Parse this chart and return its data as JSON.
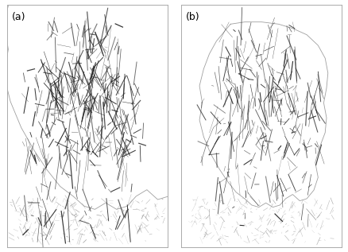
{
  "figsize": [
    4.39,
    3.17
  ],
  "dpi": 100,
  "background_color": "#ffffff",
  "border_color": "#aaaaaa",
  "label_a": "(a)",
  "label_b": "(b)",
  "label_fontsize": 9,
  "line_color": "#222222",
  "outline_color": "#888888",
  "coastal_color": "#aaaaaa",
  "seed_a": 101,
  "seed_b": 202,
  "seed_coast_a": 301,
  "seed_coast_b": 401
}
